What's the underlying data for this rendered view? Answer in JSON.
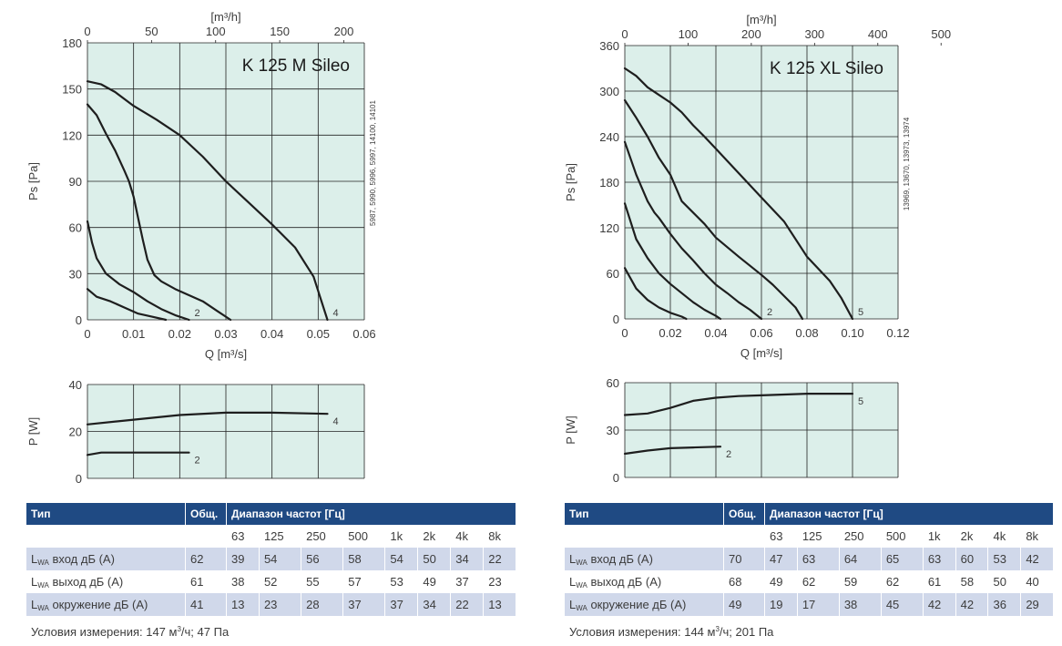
{
  "colors": {
    "plot_bg": "#dcefea",
    "grid": "#222222",
    "curve": "#1e1e1e",
    "header": "#1f4a83",
    "row_shade": "#d0d8ea"
  },
  "chart_data": [
    {
      "id": "left_pressure",
      "type": "line",
      "title": "K 125 M Sileo",
      "code": "5987, 5990, 5996, 5997, 14100, 14101",
      "xlabel": "Q [m³/s]",
      "x2label": "[m³/h]",
      "ylabel": "Ps [Pa]",
      "xlim": [
        0,
        0.06
      ],
      "x2lim": [
        0,
        216
      ],
      "ylim": [
        0,
        180
      ],
      "xticks": [
        0,
        0.01,
        0.02,
        0.03,
        0.04,
        0.05,
        0.06
      ],
      "xticklabels": [
        "0",
        "0.01",
        "0.02",
        "0.03",
        "0.04",
        "0.05",
        "0.06"
      ],
      "x2ticks": [
        0,
        50,
        100,
        150,
        200
      ],
      "yticks": [
        0,
        30,
        60,
        90,
        120,
        150,
        180
      ],
      "grid": true,
      "series": [
        {
          "label": "",
          "points": [
            [
              0,
              20
            ],
            [
              0.002,
              15
            ],
            [
              0.005,
              12
            ],
            [
              0.008,
              8
            ],
            [
              0.011,
              4
            ],
            [
              0.014,
              2
            ],
            [
              0.017,
              0
            ]
          ]
        },
        {
          "label": "2",
          "points": [
            [
              0,
              64
            ],
            [
              0.001,
              50
            ],
            [
              0.002,
              40
            ],
            [
              0.004,
              30
            ],
            [
              0.007,
              23
            ],
            [
              0.01,
              18
            ],
            [
              0.013,
              12
            ],
            [
              0.016,
              7
            ],
            [
              0.019,
              3
            ],
            [
              0.022,
              0
            ]
          ]
        },
        {
          "label": "",
          "points": [
            [
              0,
              140
            ],
            [
              0.002,
              133
            ],
            [
              0.004,
              121
            ],
            [
              0.006,
              110
            ],
            [
              0.008,
              97
            ],
            [
              0.009,
              90
            ],
            [
              0.01,
              80
            ],
            [
              0.011,
              66
            ],
            [
              0.012,
              52
            ],
            [
              0.013,
              39
            ],
            [
              0.0145,
              29
            ],
            [
              0.016,
              25
            ],
            [
              0.019,
              20
            ],
            [
              0.022,
              16
            ],
            [
              0.025,
              12
            ],
            [
              0.028,
              6
            ],
            [
              0.031,
              0
            ]
          ]
        },
        {
          "label": "4",
          "points": [
            [
              0,
              155
            ],
            [
              0.003,
              153
            ],
            [
              0.006,
              148
            ],
            [
              0.01,
              139
            ],
            [
              0.015,
              130
            ],
            [
              0.02,
              120
            ],
            [
              0.025,
              106
            ],
            [
              0.03,
              90
            ],
            [
              0.035,
              76
            ],
            [
              0.04,
              62
            ],
            [
              0.045,
              47
            ],
            [
              0.049,
              28
            ],
            [
              0.052,
              0
            ]
          ]
        }
      ]
    },
    {
      "id": "left_power",
      "type": "line",
      "ylabel": "P [W]",
      "xlim": [
        0,
        0.06
      ],
      "ylim": [
        0,
        40
      ],
      "yticks": [
        0,
        20,
        40
      ],
      "grid": true,
      "series": [
        {
          "label": "2",
          "points": [
            [
              0,
              10
            ],
            [
              0.003,
              11
            ],
            [
              0.01,
              11
            ],
            [
              0.017,
              11
            ],
            [
              0.022,
              11
            ]
          ]
        },
        {
          "label": "4",
          "points": [
            [
              0,
              23
            ],
            [
              0.01,
              25
            ],
            [
              0.02,
              27
            ],
            [
              0.03,
              28
            ],
            [
              0.04,
              28
            ],
            [
              0.052,
              27.5
            ]
          ]
        }
      ]
    },
    {
      "id": "right_pressure",
      "type": "line",
      "title": "K 125 XL Sileo",
      "code": "13969, 13670, 13973, 13974",
      "xlabel": "Q [m³/s]",
      "x2label": "[m³/h]",
      "ylabel": "Ps [Pa]",
      "xlim": [
        0,
        0.12
      ],
      "x2lim": [
        0,
        432
      ],
      "ylim": [
        0,
        360
      ],
      "xticks": [
        0,
        0.02,
        0.04,
        0.06,
        0.08,
        0.1,
        0.12
      ],
      "xticklabels": [
        "0",
        "0.02",
        "0.04",
        "0.06",
        "0.08",
        "0.10",
        "0.12"
      ],
      "x2ticks": [
        0,
        100,
        200,
        300,
        400,
        500
      ],
      "yticks": [
        0,
        60,
        120,
        180,
        240,
        300,
        360
      ],
      "grid": true,
      "series": [
        {
          "label": "",
          "points": [
            [
              0,
              67
            ],
            [
              0.005,
              40
            ],
            [
              0.01,
              25
            ],
            [
              0.015,
              15
            ],
            [
              0.02,
              8
            ],
            [
              0.025,
              3
            ],
            [
              0.027,
              0
            ]
          ]
        },
        {
          "label": "",
          "points": [
            [
              0,
              152
            ],
            [
              0.005,
              105
            ],
            [
              0.01,
              80
            ],
            [
              0.015,
              60
            ],
            [
              0.02,
              46
            ],
            [
              0.025,
              34
            ],
            [
              0.03,
              22
            ],
            [
              0.035,
              12
            ],
            [
              0.04,
              4
            ],
            [
              0.042,
              0
            ]
          ]
        },
        {
          "label": "2",
          "points": [
            [
              0,
              233
            ],
            [
              0.005,
              190
            ],
            [
              0.01,
              155
            ],
            [
              0.013,
              140
            ],
            [
              0.015,
              133
            ],
            [
              0.02,
              112
            ],
            [
              0.025,
              93
            ],
            [
              0.03,
              77
            ],
            [
              0.035,
              60
            ],
            [
              0.04,
              45
            ],
            [
              0.045,
              34
            ],
            [
              0.05,
              22
            ],
            [
              0.055,
              12
            ],
            [
              0.06,
              0
            ]
          ]
        },
        {
          "label": "",
          "points": [
            [
              0,
              288
            ],
            [
              0.005,
              265
            ],
            [
              0.01,
              240
            ],
            [
              0.015,
              212
            ],
            [
              0.02,
              190
            ],
            [
              0.025,
              155
            ],
            [
              0.03,
              140
            ],
            [
              0.035,
              125
            ],
            [
              0.04,
              107
            ],
            [
              0.05,
              82
            ],
            [
              0.06,
              58
            ],
            [
              0.065,
              45
            ],
            [
              0.07,
              30
            ],
            [
              0.075,
              15
            ],
            [
              0.078,
              0
            ]
          ]
        },
        {
          "label": "5",
          "points": [
            [
              0,
              330
            ],
            [
              0.005,
              320
            ],
            [
              0.01,
              305
            ],
            [
              0.015,
              295
            ],
            [
              0.02,
              285
            ],
            [
              0.025,
              272
            ],
            [
              0.03,
              255
            ],
            [
              0.035,
              240
            ],
            [
              0.04,
              224
            ],
            [
              0.05,
              192
            ],
            [
              0.06,
              160
            ],
            [
              0.07,
              128
            ],
            [
              0.08,
              82
            ],
            [
              0.09,
              50
            ],
            [
              0.095,
              28
            ],
            [
              0.1,
              0
            ]
          ]
        }
      ]
    },
    {
      "id": "right_power",
      "type": "line",
      "ylabel": "P [W]",
      "xlim": [
        0,
        0.12
      ],
      "ylim": [
        0,
        60
      ],
      "yticks": [
        0,
        30,
        60
      ],
      "grid": true,
      "series": [
        {
          "label": "2",
          "points": [
            [
              0,
              15
            ],
            [
              0.01,
              17
            ],
            [
              0.02,
              18.5
            ],
            [
              0.03,
              19
            ],
            [
              0.042,
              19.5
            ]
          ]
        },
        {
          "label": "5",
          "points": [
            [
              0,
              39.5
            ],
            [
              0.01,
              40.5
            ],
            [
              0.02,
              44
            ],
            [
              0.03,
              48.5
            ],
            [
              0.04,
              50.5
            ],
            [
              0.05,
              51.5
            ],
            [
              0.06,
              52
            ],
            [
              0.07,
              52.5
            ],
            [
              0.08,
              53
            ],
            [
              0.1,
              53
            ]
          ]
        }
      ]
    }
  ],
  "tables": [
    {
      "col_type": "Тип",
      "col_total": "Общ.",
      "col_range": "Диапазон частот [Гц]",
      "freqs": [
        "63",
        "125",
        "250",
        "500",
        "1k",
        "2k",
        "4k",
        "8k"
      ],
      "rows": [
        {
          "sub": "WA",
          "label": "вход дБ (А)",
          "total": "62",
          "values": [
            "39",
            "54",
            "56",
            "58",
            "54",
            "50",
            "34",
            "22"
          ]
        },
        {
          "sub": "WA",
          "label": "выход дБ (А)",
          "total": "61",
          "values": [
            "38",
            "52",
            "55",
            "57",
            "53",
            "49",
            "37",
            "23"
          ]
        },
        {
          "sub": "WA",
          "label": "окружение дБ (А)",
          "total": "41",
          "values": [
            "13",
            "23",
            "28",
            "37",
            "37",
            "34",
            "22",
            "13"
          ]
        }
      ],
      "note_prefix": "Условия измерения: 147 м",
      "note_sup": "3",
      "note_suffix": "/ч; 47 Па"
    },
    {
      "col_type": "Тип",
      "col_total": "Общ.",
      "col_range": "Диапазон частот [Гц]",
      "freqs": [
        "63",
        "125",
        "250",
        "500",
        "1k",
        "2k",
        "4k",
        "8k"
      ],
      "rows": [
        {
          "sub": "WA",
          "label": "вход дБ (А)",
          "total": "70",
          "values": [
            "47",
            "63",
            "64",
            "65",
            "63",
            "60",
            "53",
            "42"
          ]
        },
        {
          "sub": "WA",
          "label": "выход дБ (А)",
          "total": "68",
          "values": [
            "49",
            "62",
            "59",
            "62",
            "61",
            "58",
            "50",
            "40"
          ]
        },
        {
          "sub": "WA",
          "label": "окружение дБ (А)",
          "total": "49",
          "values": [
            "19",
            "17",
            "38",
            "45",
            "42",
            "42",
            "36",
            "29"
          ]
        }
      ],
      "note_prefix": "Условия измерения: 144 м",
      "note_sup": "3",
      "note_suffix": "/ч; 201 Па"
    }
  ]
}
